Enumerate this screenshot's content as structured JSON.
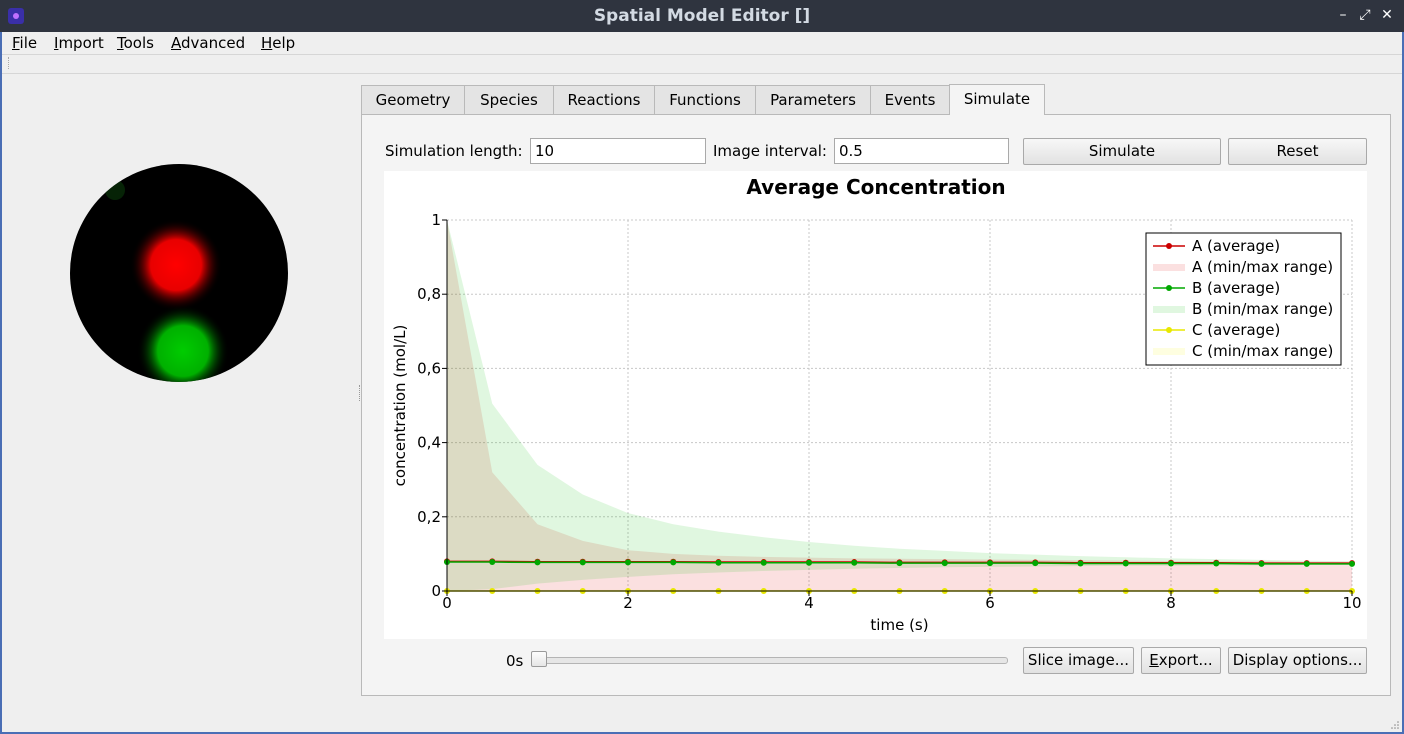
{
  "window": {
    "title": "Spatial Model Editor []",
    "controls": [
      "–",
      "⤢",
      "✕"
    ]
  },
  "menu": [
    {
      "label": "File",
      "mnemonic": "F",
      "rest": "ile"
    },
    {
      "label": "Import",
      "mnemonic": "I",
      "rest": "mport"
    },
    {
      "label": "Tools",
      "mnemonic": "T",
      "rest": "ools"
    },
    {
      "label": "Advanced",
      "mnemonic": "A",
      "rest": "dvanced"
    },
    {
      "label": "Help",
      "mnemonic": "H",
      "rest": "elp"
    }
  ],
  "tabs": [
    "Geometry",
    "Species",
    "Reactions",
    "Functions",
    "Parameters",
    "Events",
    "Simulate"
  ],
  "active_tab": "Simulate",
  "sim": {
    "length_label": "Simulation length:",
    "length_value": "10",
    "interval_label": "Image interval:",
    "interval_value": "0.5",
    "simulate_button": "Simulate",
    "reset_button": "Reset"
  },
  "controls": {
    "time_label": "0s",
    "slider_position": 0,
    "slice_button": "Slice image...",
    "export_button_m": "E",
    "export_button_rest": "xport...",
    "display_button": "Display options..."
  },
  "colors": {
    "A": "#e00000",
    "B": "#00b000",
    "C": "#e8e800"
  },
  "chart_data": {
    "type": "line",
    "title": "Average Concentration",
    "xlabel": "time (s)",
    "ylabel": "concentration (mol/L)",
    "xlim": [
      0,
      10
    ],
    "ylim": [
      0,
      1
    ],
    "xticks": [
      "0",
      "2",
      "4",
      "6",
      "8",
      "10"
    ],
    "yticks": [
      "0",
      "0,2",
      "0,4",
      "0,6",
      "0,8",
      "1"
    ],
    "grid": true,
    "legend_position": "top-right",
    "x": [
      0,
      0.5,
      1,
      1.5,
      2,
      2.5,
      3,
      3.5,
      4,
      4.5,
      5,
      5.5,
      6,
      6.5,
      7,
      7.5,
      8,
      8.5,
      9,
      9.5,
      10
    ],
    "series": [
      {
        "name": "A (average)",
        "kind": "average",
        "color": "#cc0000",
        "values": [
          0.08,
          0.08,
          0.079,
          0.079,
          0.079,
          0.079,
          0.078,
          0.078,
          0.078,
          0.078,
          0.077,
          0.077,
          0.077,
          0.077,
          0.076,
          0.076,
          0.076,
          0.076,
          0.075,
          0.075,
          0.075
        ]
      },
      {
        "name": "A (min/max range)",
        "kind": "range",
        "color": "#e00000",
        "min": [
          0,
          0,
          0,
          0,
          0,
          0,
          0,
          0,
          0,
          0,
          0,
          0,
          0,
          0,
          0,
          0,
          0,
          0,
          0,
          0,
          0
        ],
        "max": [
          1,
          0.32,
          0.18,
          0.135,
          0.11,
          0.1,
          0.095,
          0.092,
          0.09,
          0.088,
          0.087,
          0.086,
          0.085,
          0.084,
          0.083,
          0.082,
          0.081,
          0.08,
          0.08,
          0.079,
          0.079
        ]
      },
      {
        "name": "B (average)",
        "kind": "average",
        "color": "#00a800",
        "values": [
          0.078,
          0.078,
          0.077,
          0.077,
          0.077,
          0.077,
          0.076,
          0.076,
          0.076,
          0.076,
          0.075,
          0.075,
          0.075,
          0.075,
          0.074,
          0.074,
          0.074,
          0.074,
          0.073,
          0.073,
          0.073
        ]
      },
      {
        "name": "B (min/max range)",
        "kind": "range",
        "color": "#00c000",
        "min": [
          0,
          0.005,
          0.02,
          0.03,
          0.038,
          0.045,
          0.05,
          0.054,
          0.057,
          0.06,
          0.062,
          0.064,
          0.065,
          0.066,
          0.067,
          0.068,
          0.068,
          0.069,
          0.069,
          0.07,
          0.07
        ],
        "max": [
          1,
          0.505,
          0.34,
          0.26,
          0.21,
          0.18,
          0.16,
          0.145,
          0.132,
          0.122,
          0.114,
          0.108,
          0.102,
          0.098,
          0.094,
          0.091,
          0.088,
          0.086,
          0.084,
          0.082,
          0.08
        ]
      },
      {
        "name": "C (average)",
        "kind": "average",
        "color": "#e8e800",
        "values": [
          0,
          0,
          0,
          0,
          0,
          0,
          0,
          0,
          0,
          0,
          0,
          0,
          0,
          0,
          0,
          0,
          0,
          0,
          0,
          0,
          0
        ]
      },
      {
        "name": "C (min/max range)",
        "kind": "range",
        "color": "#f4f400",
        "min": [
          0,
          0,
          0,
          0,
          0,
          0,
          0,
          0,
          0,
          0,
          0,
          0,
          0,
          0,
          0,
          0,
          0,
          0,
          0,
          0,
          0
        ],
        "max": [
          0.003,
          0.003,
          0.003,
          0.003,
          0.003,
          0.003,
          0.003,
          0.003,
          0.003,
          0.003,
          0.003,
          0.003,
          0.003,
          0.003,
          0.003,
          0.003,
          0.003,
          0.003,
          0.003,
          0.003,
          0.003
        ]
      }
    ]
  }
}
